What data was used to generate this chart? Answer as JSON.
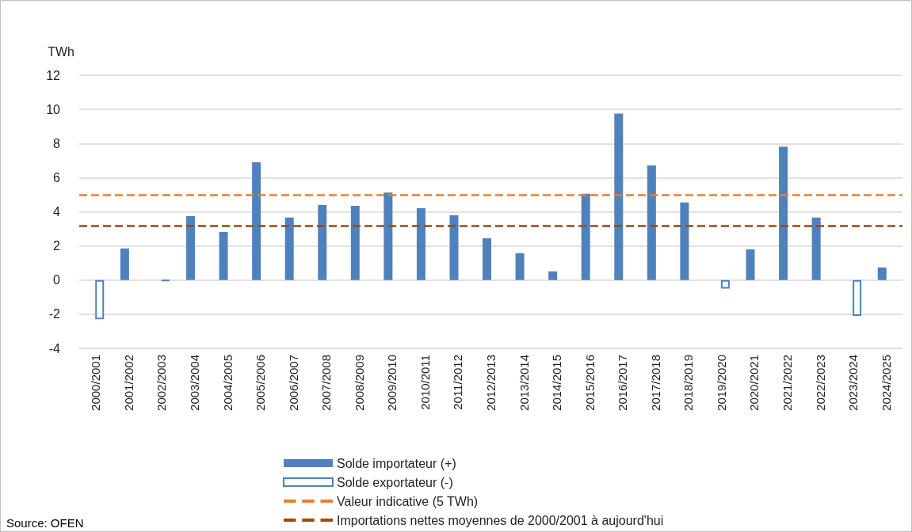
{
  "chart_data": {
    "type": "bar",
    "ylabel": "TWh",
    "categories": [
      "2000/2001",
      "2001/2002",
      "2002/2003",
      "2003/2004",
      "2004/2005",
      "2005/2006",
      "2006/2007",
      "2007/2008",
      "2008/2009",
      "2009/2010",
      "2010/2011",
      "2011/2012",
      "2012/2013",
      "2013/2014",
      "2014/2015",
      "2015/2016",
      "2016/2017",
      "2017/2018",
      "2018/2019",
      "2019/2020",
      "2020/2021",
      "2021/2022",
      "2022/2023",
      "2023/2024",
      "2024/2025"
    ],
    "series": [
      {
        "name": "Solde importateur (+)",
        "color": "#4f81bd",
        "values": [
          null,
          1.85,
          null,
          3.75,
          2.82,
          6.9,
          3.66,
          4.4,
          4.35,
          5.12,
          4.21,
          3.8,
          2.45,
          1.57,
          0.51,
          5.05,
          9.75,
          6.71,
          4.54,
          null,
          1.8,
          7.82,
          3.66,
          null,
          0.74
        ]
      },
      {
        "name": "Solde exportateur (-)",
        "color": "#4f81bd",
        "values": [
          -2.3,
          null,
          -0.05,
          null,
          null,
          null,
          null,
          null,
          null,
          null,
          null,
          null,
          null,
          null,
          null,
          null,
          null,
          null,
          null,
          -0.5,
          null,
          null,
          null,
          -2.1,
          null
        ]
      }
    ],
    "ref_lines": [
      {
        "axis": "y",
        "value": 5,
        "label": "Valeur indicative (5 TWh)",
        "color": "#ed7d31",
        "line_style": "dashed"
      },
      {
        "axis": "y",
        "value": 3.2,
        "label": "Importations nettes moyennes de 2000/2001 à aujourd'hui",
        "color": "#9e480e",
        "line_style": "dashed"
      }
    ],
    "ylim": [
      -4,
      12
    ],
    "yticks": [
      -4,
      -2,
      0,
      2,
      4,
      6,
      8,
      10,
      12
    ],
    "grid": "y",
    "legend": "bottom",
    "annotations": [
      "Source: OFEN"
    ]
  }
}
